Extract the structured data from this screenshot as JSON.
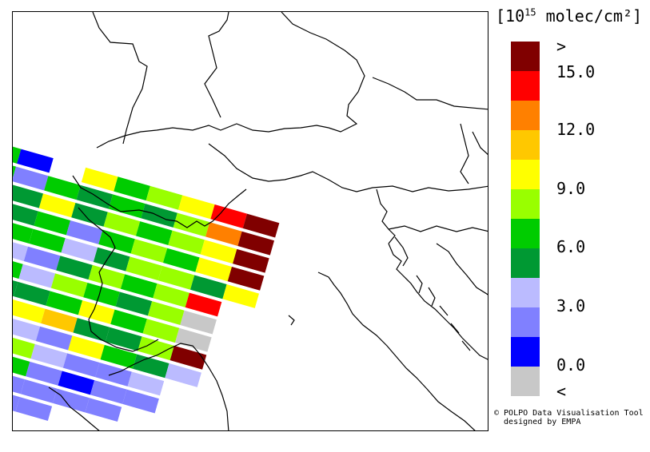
{
  "legend": {
    "units_prefix": "[10",
    "units_exp": "15",
    "units_suffix": " molec/cm²]",
    "bins": [
      {
        "color": "#800000"
      },
      {
        "color": "#ff0000"
      },
      {
        "color": "#ff8000"
      },
      {
        "color": "#ffc800"
      },
      {
        "color": "#ffff00"
      },
      {
        "color": "#99ff00"
      },
      {
        "color": "#00cc00"
      },
      {
        "color": "#009933"
      },
      {
        "color": "#bbbbff"
      },
      {
        "color": "#8080ff"
      },
      {
        "color": "#0000ff"
      },
      {
        "color": "#c8c8c8"
      }
    ],
    "tick_labels": [
      ">",
      "15.0",
      "12.0",
      "9.0",
      "6.0",
      "3.0",
      "0.0",
      "<"
    ]
  },
  "copyright": {
    "line1": "© POLPO Data Visualisation Tool",
    "line2": "  designed by EMPA"
  },
  "swath": {
    "rows": [
      [
        "#00cc00",
        "#0000ff",
        "#ffffff",
        "#ffff00",
        "#00cc00",
        "#99ff00",
        "#ffff00",
        "#ff0000",
        "#800000"
      ],
      [
        "#00cc00",
        "#8080ff",
        "#00cc00",
        "#009933",
        "#00cc00",
        "#009933",
        "#99ff00",
        "#ff8000",
        "#800000"
      ],
      [
        "#bbbbff",
        "#009933",
        "#ffff00",
        "#009933",
        "#99ff00",
        "#00cc00",
        "#99ff00",
        "#ffff00",
        "#800000"
      ],
      [
        "#8080ff",
        "#009933",
        "#00cc00",
        "#8080ff",
        "#00cc00",
        "#99ff00",
        "#00cc00",
        "#ffff00",
        "#800000"
      ],
      [
        "#009933",
        "#00cc00",
        "#00cc00",
        "#bbbbff",
        "#009933",
        "#99ff00",
        "#99ff00",
        "#009933",
        "#ffff00"
      ],
      [
        "#ffff00",
        "#bbbbff",
        "#8080ff",
        "#009933",
        "#99ff00",
        "#00cc00",
        "#99ff00",
        "#ff0000",
        "#ffffff"
      ],
      [
        "#009933",
        "#00cc00",
        "#bbbbff",
        "#99ff00",
        "#00cc00",
        "#009933",
        "#99ff00",
        "#c8c8c8",
        "#ffffff"
      ],
      [
        "#00cc00",
        "#009933",
        "#009933",
        "#00cc00",
        "#ffff00",
        "#00cc00",
        "#99ff00",
        "#c8c8c8",
        "#ffffff"
      ],
      [
        "#8080ff",
        "#0000ff",
        "#ffff00",
        "#ffc800",
        "#009933",
        "#009933",
        "#99ff00",
        "#800000",
        "#ffffff"
      ],
      [
        "#0000ff",
        "#8080ff",
        "#bbbbff",
        "#8080ff",
        "#ffff00",
        "#00cc00",
        "#009933",
        "#bbbbff",
        "#ffffff"
      ],
      [
        "#8080ff",
        "#0000ff",
        "#99ff00",
        "#bbbbff",
        "#8080ff",
        "#8080ff",
        "#bbbbff",
        "#ffffff",
        "#ffffff"
      ],
      [
        "#bbbbff",
        "#8080ff",
        "#00cc00",
        "#8080ff",
        "#0000ff",
        "#8080ff",
        "#8080ff",
        "#ffffff",
        "#ffffff"
      ],
      [
        "#009933",
        "#00cc00",
        "#8080ff",
        "#8080ff",
        "#8080ff",
        "#8080ff",
        "#ffffff",
        "#ffffff",
        "#ffffff"
      ],
      [
        "#00cc00",
        "#009933",
        "#8080ff",
        "#8080ff",
        "#ffffff",
        "#ffffff",
        "#ffffff",
        "#ffffff",
        "#ffffff"
      ]
    ]
  }
}
